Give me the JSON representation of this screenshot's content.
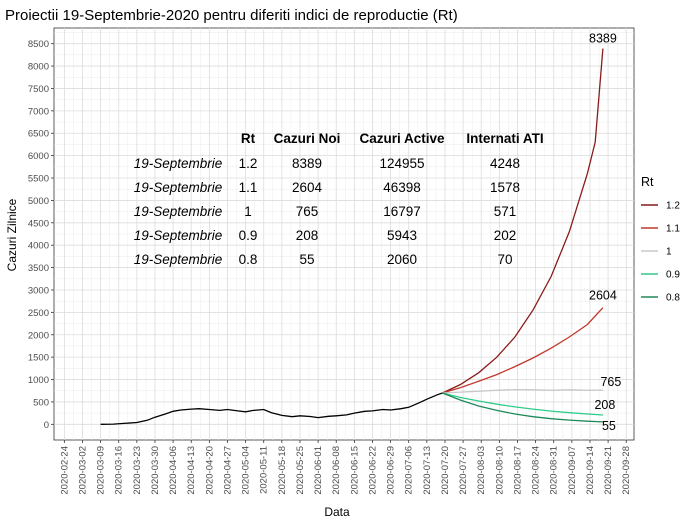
{
  "chart_data": {
    "type": "line",
    "title": "Proiectii 19-Septembrie-2020 pentru diferiti indici de reproductie (Rt)",
    "xlabel": "Data",
    "ylabel": "Cazuri Zilnice",
    "ylim": [
      -350,
      8850
    ],
    "y_ticks": [
      0,
      500,
      1000,
      1500,
      2000,
      2500,
      3000,
      3500,
      4000,
      4500,
      5000,
      5500,
      6000,
      6500,
      7000,
      7500,
      8000,
      8500
    ],
    "x_ticks": [
      "2020-02-24",
      "2020-03-02",
      "2020-03-09",
      "2020-03-16",
      "2020-03-23",
      "2020-03-30",
      "2020-04-06",
      "2020-04-13",
      "2020-04-20",
      "2020-04-27",
      "2020-05-04",
      "2020-05-11",
      "2020-05-18",
      "2020-05-25",
      "2020-06-01",
      "2020-06-08",
      "2020-06-15",
      "2020-06-22",
      "2020-06-29",
      "2020-07-06",
      "2020-07-13",
      "2020-07-20",
      "2020-07-27",
      "2020-08-03",
      "2020-08-10",
      "2020-08-17",
      "2020-08-24",
      "2020-08-31",
      "2020-09-07",
      "2020-09-14",
      "2020-09-21",
      "2020-09-28"
    ],
    "grid": true,
    "legend": {
      "title": "Rt",
      "placement": "right",
      "items": [
        {
          "label": "1.2",
          "color": "#8b1a1a"
        },
        {
          "label": "1.1",
          "color": "#c0392b"
        },
        {
          "label": "1",
          "color": "#c8c8c8"
        },
        {
          "label": "0.9",
          "color": "#2ecc8a"
        },
        {
          "label": "0.8",
          "color": "#1e8a5a"
        }
      ]
    },
    "series": [
      {
        "color": "#000000",
        "points": [
          [
            "2020-03-09",
            0
          ],
          [
            "2020-03-14",
            5
          ],
          [
            "2020-03-18",
            20
          ],
          [
            "2020-03-23",
            40
          ],
          [
            "2020-03-27",
            90
          ],
          [
            "2020-03-30",
            160
          ],
          [
            "2020-04-03",
            230
          ],
          [
            "2020-04-06",
            290
          ],
          [
            "2020-04-09",
            320
          ],
          [
            "2020-04-13",
            340
          ],
          [
            "2020-04-16",
            350
          ],
          [
            "2020-04-20",
            330
          ],
          [
            "2020-04-24",
            310
          ],
          [
            "2020-04-27",
            330
          ],
          [
            "2020-05-01",
            300
          ],
          [
            "2020-05-04",
            280
          ],
          [
            "2020-05-07",
            310
          ],
          [
            "2020-05-11",
            330
          ],
          [
            "2020-05-14",
            260
          ],
          [
            "2020-05-18",
            200
          ],
          [
            "2020-05-22",
            170
          ],
          [
            "2020-05-25",
            190
          ],
          [
            "2020-05-29",
            175
          ],
          [
            "2020-06-01",
            150
          ],
          [
            "2020-06-05",
            180
          ],
          [
            "2020-06-08",
            190
          ],
          [
            "2020-06-12",
            210
          ],
          [
            "2020-06-15",
            250
          ],
          [
            "2020-06-19",
            290
          ],
          [
            "2020-06-22",
            300
          ],
          [
            "2020-06-26",
            330
          ],
          [
            "2020-06-29",
            320
          ],
          [
            "2020-07-03",
            350
          ],
          [
            "2020-07-06",
            380
          ],
          [
            "2020-07-10",
            480
          ],
          [
            "2020-07-13",
            560
          ],
          [
            "2020-07-17",
            660
          ],
          [
            "2020-07-19",
            700
          ]
        ]
      },
      {
        "name": "1.2",
        "color": "#8b1a1a",
        "end_label": "8389",
        "points": [
          [
            "2020-07-19",
            700
          ],
          [
            "2020-07-26",
            890
          ],
          [
            "2020-08-02",
            1150
          ],
          [
            "2020-08-09",
            1500
          ],
          [
            "2020-08-16",
            1950
          ],
          [
            "2020-08-23",
            2550
          ],
          [
            "2020-08-30",
            3300
          ],
          [
            "2020-09-06",
            4300
          ],
          [
            "2020-09-13",
            5600
          ],
          [
            "2020-09-16",
            6300
          ],
          [
            "2020-09-19",
            8389
          ]
        ]
      },
      {
        "name": "1.1",
        "color": "#c0392b",
        "end_label": "2604",
        "points": [
          [
            "2020-07-19",
            700
          ],
          [
            "2020-07-26",
            820
          ],
          [
            "2020-08-02",
            960
          ],
          [
            "2020-08-09",
            1110
          ],
          [
            "2020-08-16",
            1290
          ],
          [
            "2020-08-23",
            1480
          ],
          [
            "2020-08-30",
            1700
          ],
          [
            "2020-09-06",
            1950
          ],
          [
            "2020-09-13",
            2230
          ],
          [
            "2020-09-19",
            2604
          ]
        ]
      },
      {
        "name": "1",
        "color": "#c8c8c8",
        "end_label": "765",
        "points": [
          [
            "2020-07-19",
            700
          ],
          [
            "2020-07-26",
            720
          ],
          [
            "2020-08-02",
            740
          ],
          [
            "2020-08-09",
            760
          ],
          [
            "2020-08-16",
            775
          ],
          [
            "2020-08-23",
            770
          ],
          [
            "2020-08-30",
            760
          ],
          [
            "2020-09-06",
            770
          ],
          [
            "2020-09-13",
            760
          ],
          [
            "2020-09-19",
            765
          ]
        ]
      },
      {
        "name": "0.9",
        "color": "#2ecc8a",
        "end_label": "208",
        "points": [
          [
            "2020-07-19",
            700
          ],
          [
            "2020-07-26",
            600
          ],
          [
            "2020-08-02",
            520
          ],
          [
            "2020-08-09",
            450
          ],
          [
            "2020-08-16",
            390
          ],
          [
            "2020-08-23",
            340
          ],
          [
            "2020-08-30",
            295
          ],
          [
            "2020-09-06",
            260
          ],
          [
            "2020-09-13",
            230
          ],
          [
            "2020-09-19",
            208
          ]
        ]
      },
      {
        "name": "0.8",
        "color": "#1e8a5a",
        "end_label": "55",
        "points": [
          [
            "2020-07-19",
            700
          ],
          [
            "2020-07-26",
            540
          ],
          [
            "2020-08-02",
            410
          ],
          [
            "2020-08-09",
            310
          ],
          [
            "2020-08-16",
            230
          ],
          [
            "2020-08-23",
            170
          ],
          [
            "2020-08-30",
            125
          ],
          [
            "2020-09-06",
            95
          ],
          [
            "2020-09-13",
            70
          ],
          [
            "2020-09-19",
            55
          ]
        ]
      }
    ],
    "table": {
      "headers": [
        "",
        "Rt",
        "Cazuri Noi",
        "Cazuri Active",
        "Internati ATI"
      ],
      "rows": [
        [
          "19-Septembrie",
          "1.2",
          "8389",
          "124955",
          "4248"
        ],
        [
          "19-Septembrie",
          "1.1",
          "2604",
          "46398",
          "1578"
        ],
        [
          "19-Septembrie",
          "1",
          "765",
          "16797",
          "571"
        ],
        [
          "19-Septembrie",
          "0.9",
          "208",
          "5943",
          "202"
        ],
        [
          "19-Septembrie",
          "0.8",
          "55",
          "2060",
          "70"
        ]
      ]
    }
  }
}
